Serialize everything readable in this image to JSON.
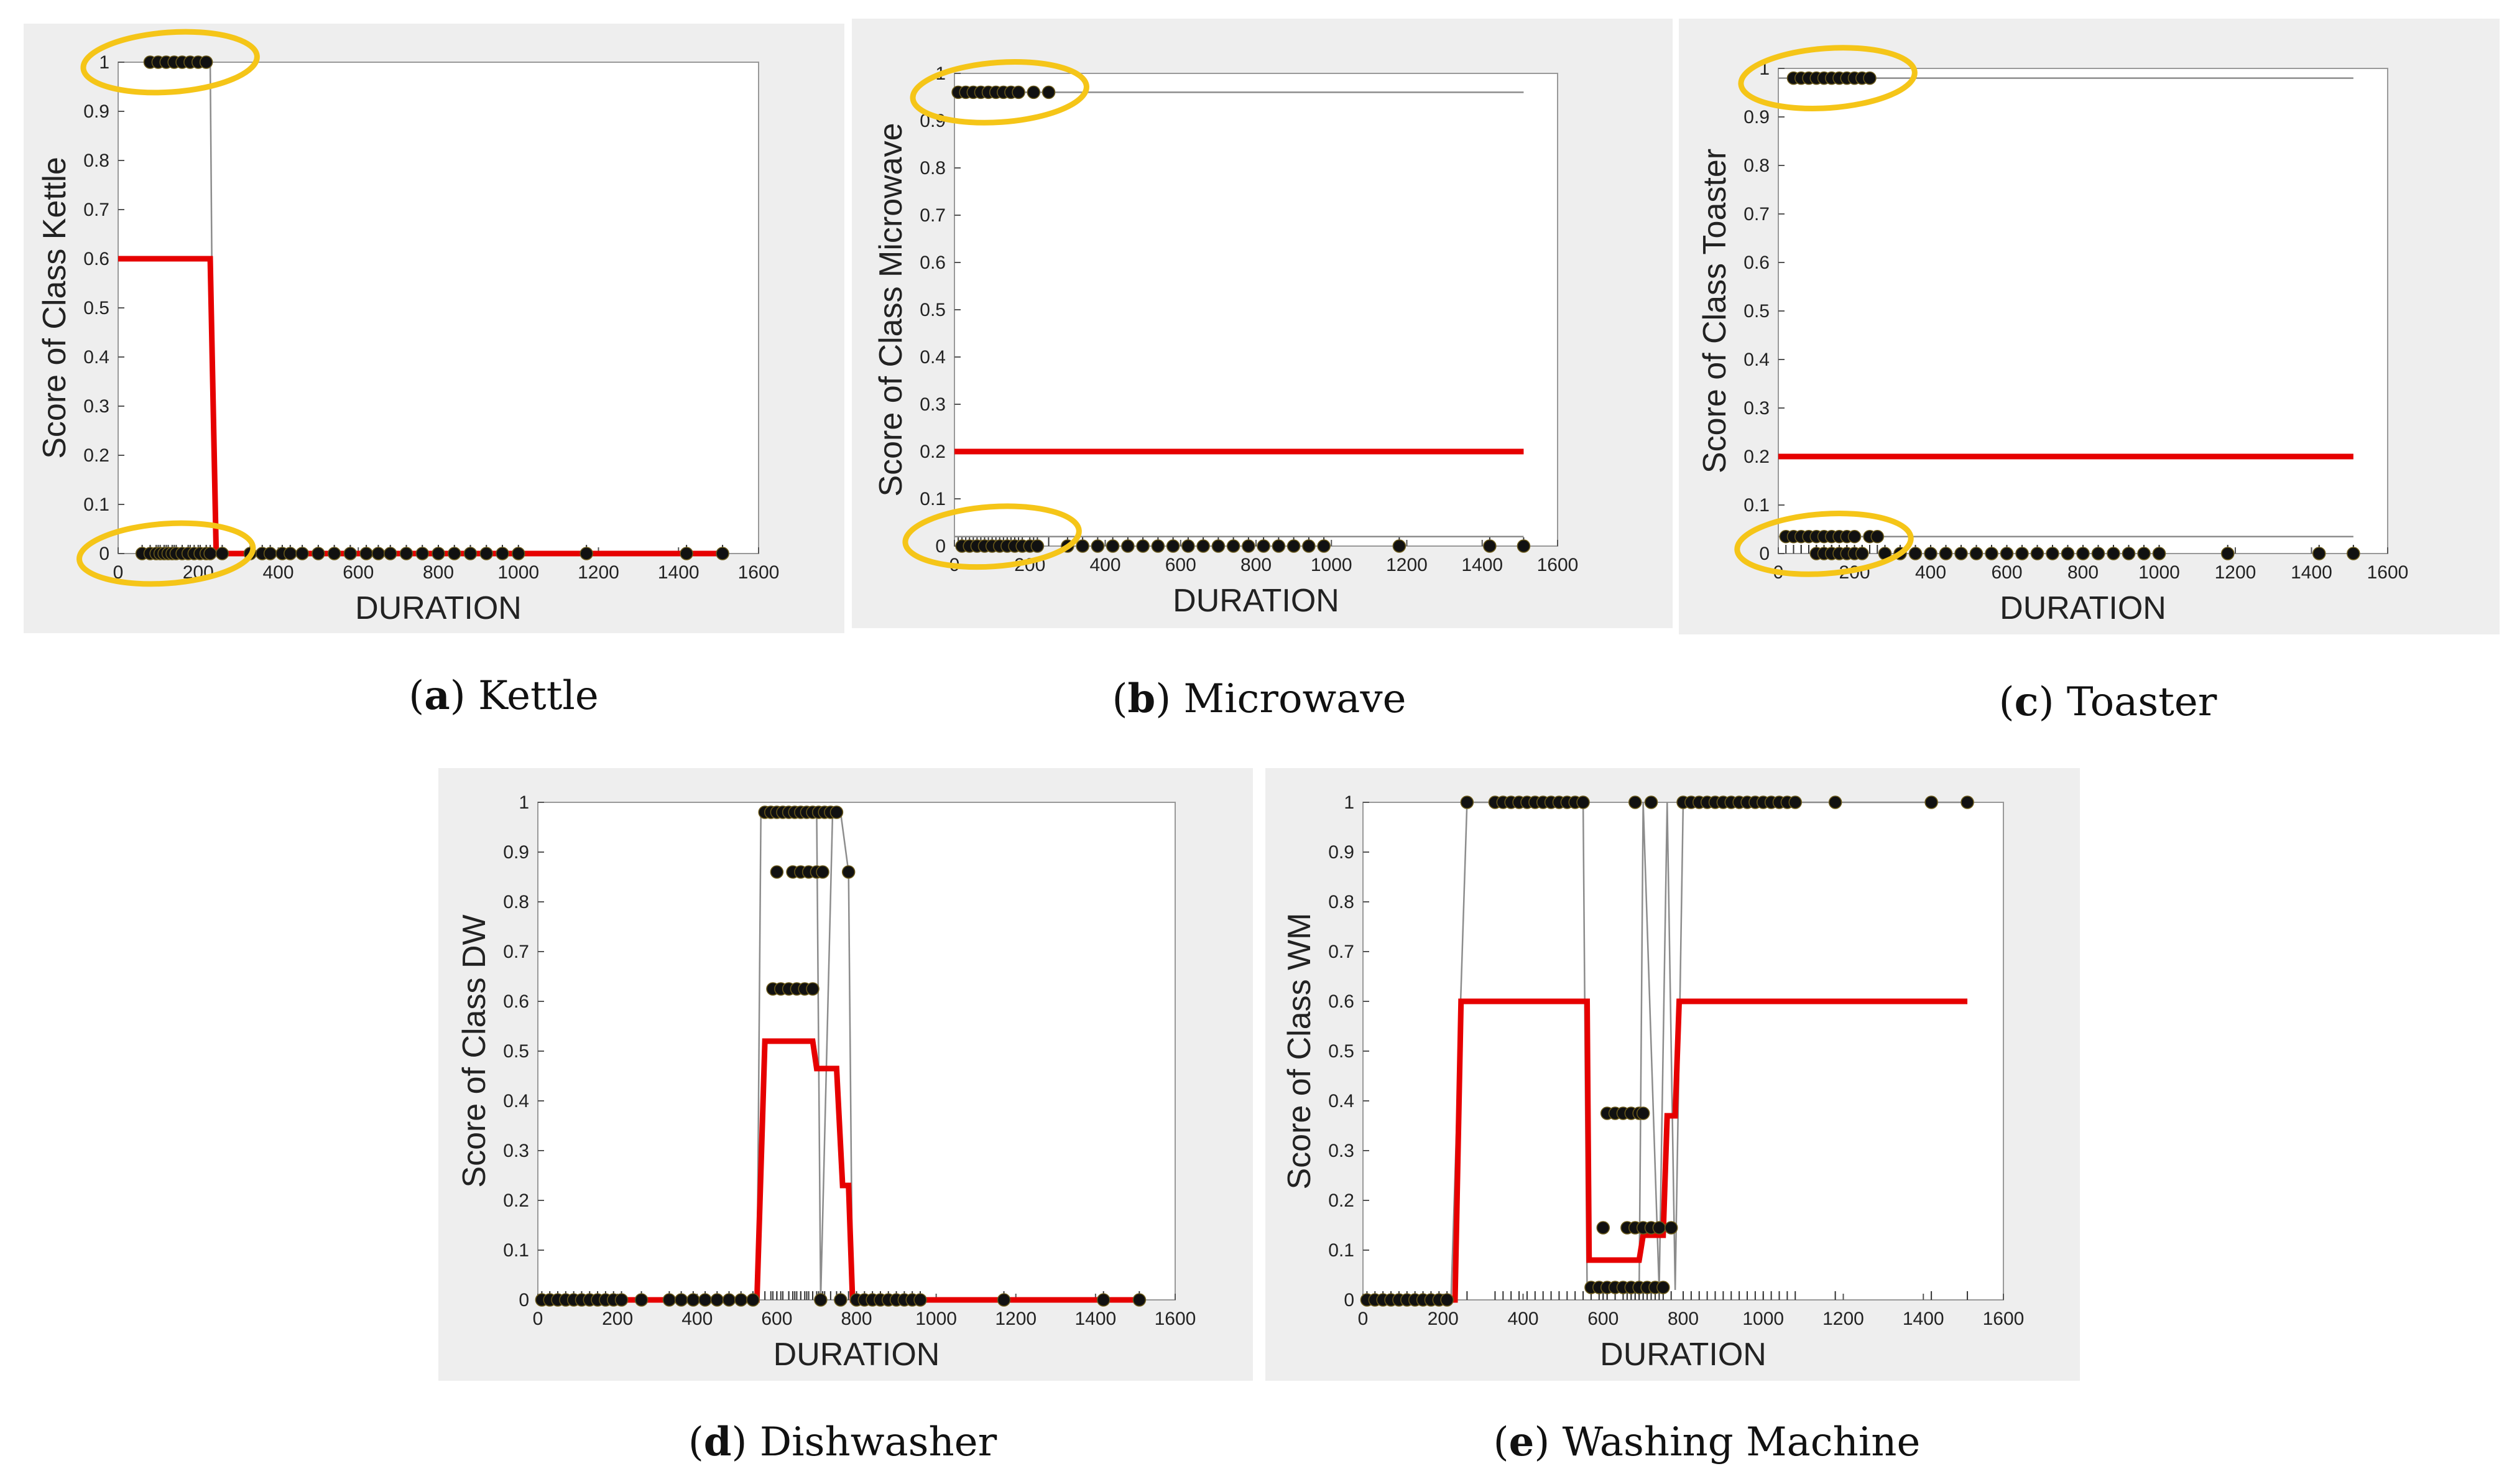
{
  "colors": {
    "figure_bg": "#eeeeee",
    "axes_bg": "#ffffff",
    "red_line": "#e60000",
    "gray_line": "#8c8c8c",
    "dot": "#111111",
    "highlight": "#f5c518"
  },
  "chart_data": [
    {
      "type": "line",
      "caption_letter": "a",
      "caption_text": "Kettle",
      "xlabel": "DURATION",
      "ylabel": "Score of Class Kettle",
      "xlim": [
        0,
        1600
      ],
      "ylim": [
        0,
        1
      ],
      "xticks": [
        "0",
        "200",
        "400",
        "600",
        "800",
        "1000",
        "1200",
        "1400",
        "1600"
      ],
      "yticks": [
        "0",
        "0.1",
        "0.2",
        "0.3",
        "0.4",
        "0.5",
        "0.6",
        "0.7",
        "0.8",
        "0.9",
        "1"
      ],
      "x_tick_values": [
        0,
        200,
        400,
        600,
        800,
        1000,
        1200,
        1400,
        1600
      ],
      "series": [
        {
          "name": "mean score",
          "color": "red",
          "x": [
            0,
            230,
            245,
            1510
          ],
          "y": [
            0.6,
            0.6,
            0,
            0
          ]
        },
        {
          "name": "score trace",
          "color": "gray",
          "x": [
            80,
            230,
            240,
            1510
          ],
          "y": [
            1,
            1,
            0,
            0
          ]
        },
        {
          "name": "points",
          "kind": "scatter",
          "x": [
            60,
            80,
            95,
            105,
            115,
            125,
            135,
            145,
            160,
            175,
            190,
            205,
            220,
            230,
            260,
            330,
            360,
            380,
            410,
            430,
            460,
            500,
            540,
            580,
            620,
            650,
            680,
            720,
            760,
            800,
            840,
            880,
            920,
            960,
            1000,
            1170,
            1420,
            1510
          ],
          "y": [
            0,
            0,
            0,
            0,
            0,
            0,
            0,
            0,
            0,
            0,
            0,
            0,
            0,
            0,
            0,
            0,
            0,
            0,
            0,
            0,
            0,
            0,
            0,
            0,
            0,
            0,
            0,
            0,
            0,
            0,
            0,
            0,
            0,
            0,
            0,
            0,
            0,
            0
          ]
        },
        {
          "name": "points-top",
          "kind": "scatter",
          "x": [
            80,
            100,
            120,
            140,
            160,
            180,
            200,
            220
          ],
          "y": [
            1,
            1,
            1,
            1,
            1,
            1,
            1,
            1
          ]
        }
      ],
      "highlights": [
        {
          "x": 130,
          "y": 1
        },
        {
          "x": 120,
          "y": 0
        }
      ]
    },
    {
      "type": "line",
      "caption_letter": "b",
      "caption_text": "Microwave",
      "xlabel": "DURATION",
      "ylabel": "Score of Class Microwave",
      "xlim": [
        0,
        1600
      ],
      "ylim": [
        0,
        1
      ],
      "xticks": [
        "0",
        "200",
        "400",
        "600",
        "800",
        "1000",
        "1200",
        "1400",
        "1600"
      ],
      "yticks": [
        "0",
        "0.1",
        "0.2",
        "0.3",
        "0.4",
        "0.5",
        "0.6",
        "0.7",
        "0.8",
        "0.9",
        "1"
      ],
      "x_tick_values": [
        0,
        200,
        400,
        600,
        800,
        1000,
        1200,
        1400,
        1600
      ],
      "series": [
        {
          "name": "mean score",
          "color": "red",
          "x": [
            0,
            1510
          ],
          "y": [
            0.2,
            0.2
          ]
        },
        {
          "name": "score trace",
          "color": "gray",
          "x": [
            0,
            1510
          ],
          "y": [
            0.96,
            0.96
          ]
        },
        {
          "name": "score trace low",
          "color": "gray",
          "x": [
            0,
            1510
          ],
          "y": [
            0.02,
            0.02
          ]
        },
        {
          "name": "points",
          "kind": "scatter",
          "x": [
            20,
            40,
            60,
            80,
            100,
            120,
            140,
            160,
            180,
            200,
            220,
            300,
            340,
            380,
            420,
            460,
            500,
            540,
            580,
            620,
            660,
            700,
            740,
            780,
            820,
            860,
            900,
            940,
            980,
            1180,
            1420,
            1510
          ],
          "y": [
            0,
            0,
            0,
            0,
            0,
            0,
            0,
            0,
            0,
            0,
            0,
            0,
            0,
            0,
            0,
            0,
            0,
            0,
            0,
            0,
            0,
            0,
            0,
            0,
            0,
            0,
            0,
            0,
            0,
            0,
            0,
            0
          ]
        },
        {
          "name": "points-top",
          "kind": "scatter",
          "x": [
            10,
            30,
            50,
            70,
            90,
            110,
            130,
            150,
            170,
            210,
            250
          ],
          "y": [
            0.96,
            0.96,
            0.96,
            0.96,
            0.96,
            0.96,
            0.96,
            0.96,
            0.96,
            0.96,
            0.96
          ]
        }
      ],
      "highlights": [
        {
          "x": 120,
          "y": 0.96
        },
        {
          "x": 100,
          "y": 0.02
        }
      ]
    },
    {
      "type": "line",
      "caption_letter": "c",
      "caption_text": "Toaster",
      "xlabel": "DURATION",
      "ylabel": "Score of Class Toaster",
      "xlim": [
        0,
        1600
      ],
      "ylim": [
        0,
        1
      ],
      "xticks": [
        "0",
        "200",
        "400",
        "600",
        "800",
        "1000",
        "1200",
        "1400",
        "1600"
      ],
      "yticks": [
        "0",
        "0.1",
        "0.2",
        "0.3",
        "0.4",
        "0.5",
        "0.6",
        "0.7",
        "0.8",
        "0.9",
        "1"
      ],
      "x_tick_values": [
        0,
        200,
        400,
        600,
        800,
        1000,
        1200,
        1400,
        1600
      ],
      "series": [
        {
          "name": "mean score",
          "color": "red",
          "x": [
            0,
            1510
          ],
          "y": [
            0.2,
            0.2
          ]
        },
        {
          "name": "score trace",
          "color": "gray",
          "x": [
            0,
            1510
          ],
          "y": [
            0.98,
            0.98
          ]
        },
        {
          "name": "score trace low",
          "color": "gray",
          "x": [
            0,
            1510
          ],
          "y": [
            0.035,
            0.035
          ]
        },
        {
          "name": "points",
          "kind": "scatter",
          "x": [
            100,
            120,
            140,
            160,
            180,
            200,
            220,
            280,
            320,
            360,
            400,
            440,
            480,
            520,
            560,
            600,
            640,
            680,
            720,
            760,
            800,
            840,
            880,
            920,
            960,
            1000,
            1180,
            1420,
            1510
          ],
          "y": [
            0,
            0,
            0,
            0,
            0,
            0,
            0,
            0,
            0,
            0,
            0,
            0,
            0,
            0,
            0,
            0,
            0,
            0,
            0,
            0,
            0,
            0,
            0,
            0,
            0,
            0,
            0,
            0,
            0
          ]
        },
        {
          "name": "points-mid",
          "kind": "scatter",
          "x": [
            20,
            40,
            60,
            80,
            100,
            120,
            140,
            160,
            180,
            200,
            240,
            260
          ],
          "y": [
            0.035,
            0.035,
            0.035,
            0.035,
            0.035,
            0.035,
            0.035,
            0.035,
            0.035,
            0.035,
            0.035,
            0.035
          ]
        },
        {
          "name": "points-top",
          "kind": "scatter",
          "x": [
            40,
            60,
            80,
            100,
            120,
            140,
            160,
            180,
            200,
            220,
            240
          ],
          "y": [
            0.98,
            0.98,
            0.98,
            0.98,
            0.98,
            0.98,
            0.98,
            0.98,
            0.98,
            0.98,
            0.98
          ]
        }
      ],
      "highlights": [
        {
          "x": 130,
          "y": 0.98
        },
        {
          "x": 120,
          "y": 0.02
        }
      ]
    },
    {
      "type": "line",
      "caption_letter": "d",
      "caption_text": "Dishwasher",
      "xlabel": "DURATION",
      "ylabel": "Score of Class DW",
      "xlim": [
        0,
        1600
      ],
      "ylim": [
        0,
        1
      ],
      "xticks": [
        "0",
        "200",
        "400",
        "600",
        "800",
        "1000",
        "1200",
        "1400",
        "1600"
      ],
      "yticks": [
        "0",
        "0.1",
        "0.2",
        "0.3",
        "0.4",
        "0.5",
        "0.6",
        "0.7",
        "0.8",
        "0.9",
        "1"
      ],
      "x_tick_values": [
        0,
        200,
        400,
        600,
        800,
        1000,
        1200,
        1400,
        1600
      ],
      "series": [
        {
          "name": "mean score",
          "color": "red",
          "x": [
            0,
            550,
            570,
            690,
            700,
            750,
            765,
            780,
            790,
            1510
          ],
          "y": [
            0,
            0,
            0.52,
            0.52,
            0.465,
            0.465,
            0.23,
            0.23,
            0,
            0
          ]
        },
        {
          "name": "score trace",
          "color": "gray",
          "x": [
            0,
            550,
            560,
            700,
            710,
            740,
            760,
            780,
            790,
            1510
          ],
          "y": [
            0,
            0,
            0.98,
            0.98,
            0,
            0.98,
            0.98,
            0.86,
            0,
            0
          ]
        },
        {
          "name": "points",
          "kind": "scatter",
          "x": [
            10,
            30,
            50,
            70,
            90,
            110,
            130,
            150,
            170,
            190,
            210,
            260,
            330,
            360,
            390,
            420,
            450,
            480,
            510,
            540,
            710,
            760,
            800,
            820,
            840,
            860,
            880,
            900,
            920,
            940,
            960,
            1170,
            1420,
            1510
          ],
          "y": [
            0,
            0,
            0,
            0,
            0,
            0,
            0,
            0,
            0,
            0,
            0,
            0,
            0,
            0,
            0,
            0,
            0,
            0,
            0,
            0,
            0,
            0,
            0,
            0,
            0,
            0,
            0,
            0,
            0,
            0,
            0,
            0,
            0,
            0
          ]
        },
        {
          "name": "points-top",
          "kind": "scatter",
          "x": [
            570,
            585,
            600,
            615,
            630,
            645,
            660,
            675,
            690,
            705,
            720,
            735,
            750
          ],
          "y": [
            0.98,
            0.98,
            0.98,
            0.98,
            0.98,
            0.98,
            0.98,
            0.98,
            0.98,
            0.98,
            0.98,
            0.98,
            0.98
          ]
        },
        {
          "name": "points-086",
          "kind": "scatter",
          "x": [
            600,
            640,
            660,
            680,
            700,
            715,
            780
          ],
          "y": [
            0.86,
            0.86,
            0.86,
            0.86,
            0.86,
            0.86,
            0.86
          ]
        },
        {
          "name": "points-062",
          "kind": "scatter",
          "x": [
            590,
            610,
            630,
            650,
            670,
            690
          ],
          "y": [
            0.625,
            0.625,
            0.625,
            0.625,
            0.625,
            0.625
          ]
        }
      ],
      "highlights": []
    },
    {
      "type": "line",
      "caption_letter": "e",
      "caption_text": "Washing Machine",
      "xlabel": "DURATION",
      "ylabel": "Score of Class WM",
      "xlim": [
        0,
        1600
      ],
      "ylim": [
        0,
        1
      ],
      "xticks": [
        "0",
        "200",
        "400",
        "600",
        "800",
        "1000",
        "1200",
        "1400",
        "1600"
      ],
      "yticks": [
        "0",
        "0.1",
        "0.2",
        "0.3",
        "0.4",
        "0.5",
        "0.6",
        "0.7",
        "0.8",
        "0.9",
        "1"
      ],
      "x_tick_values": [
        0,
        200,
        400,
        600,
        800,
        1000,
        1200,
        1400,
        1600
      ],
      "series": [
        {
          "name": "mean score",
          "color": "red",
          "x": [
            0,
            230,
            245,
            560,
            565,
            690,
            700,
            750,
            760,
            780,
            790,
            1510
          ],
          "y": [
            0,
            0,
            0.6,
            0.6,
            0.08,
            0.08,
            0.13,
            0.13,
            0.37,
            0.37,
            0.6,
            0.6
          ]
        },
        {
          "name": "score trace",
          "color": "gray",
          "x": [
            0,
            220,
            260,
            550,
            560,
            690,
            700,
            740,
            760,
            780,
            800,
            1510
          ],
          "y": [
            0,
            0,
            1,
            1,
            0.02,
            0.02,
            1,
            0.02,
            1,
            0.02,
            1,
            1
          ]
        },
        {
          "name": "points",
          "kind": "scatter",
          "x": [
            10,
            30,
            50,
            70,
            90,
            110,
            130,
            150,
            170,
            190,
            210
          ],
          "y": [
            0,
            0,
            0,
            0,
            0,
            0,
            0,
            0,
            0,
            0,
            0
          ]
        },
        {
          "name": "points-top",
          "kind": "scatter",
          "x": [
            260,
            330,
            350,
            370,
            390,
            410,
            430,
            450,
            470,
            490,
            510,
            530,
            550,
            680,
            720,
            800,
            820,
            840,
            860,
            880,
            900,
            920,
            940,
            960,
            980,
            1000,
            1020,
            1040,
            1060,
            1080,
            1180,
            1420,
            1510
          ],
          "y": [
            1,
            1,
            1,
            1,
            1,
            1,
            1,
            1,
            1,
            1,
            1,
            1,
            1,
            1,
            1,
            1,
            1,
            1,
            1,
            1,
            1,
            1,
            1,
            1,
            1,
            1,
            1,
            1,
            1,
            1,
            1,
            1,
            1
          ]
        },
        {
          "name": "points-037",
          "kind": "scatter",
          "x": [
            610,
            630,
            650,
            670,
            690,
            700
          ],
          "y": [
            0.375,
            0.375,
            0.375,
            0.375,
            0.375,
            0.375
          ]
        },
        {
          "name": "points-014",
          "kind": "scatter",
          "x": [
            600,
            660,
            680,
            700,
            720,
            740,
            770
          ],
          "y": [
            0.145,
            0.145,
            0.145,
            0.145,
            0.145,
            0.145,
            0.145
          ]
        },
        {
          "name": "points-002",
          "kind": "scatter",
          "x": [
            570,
            590,
            610,
            630,
            650,
            670,
            690,
            710,
            730,
            750
          ],
          "y": [
            0.025,
            0.025,
            0.025,
            0.025,
            0.025,
            0.025,
            0.025,
            0.025,
            0.025,
            0.025
          ]
        }
      ],
      "highlights": []
    }
  ]
}
